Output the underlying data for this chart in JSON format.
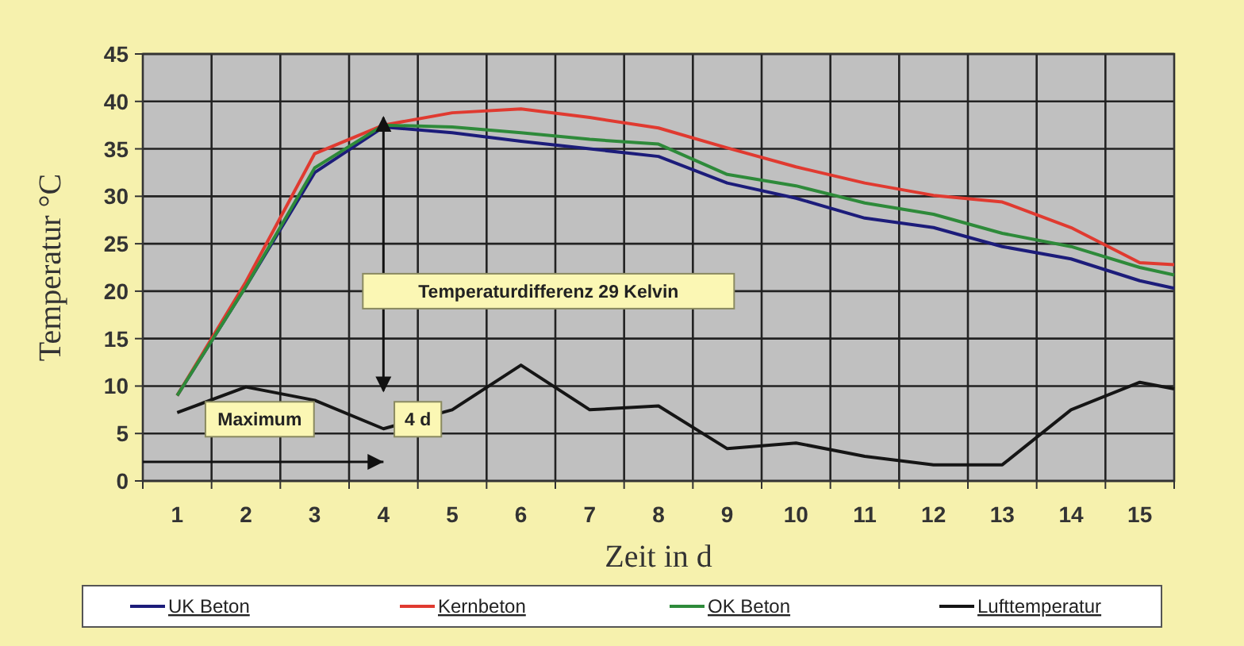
{
  "chart_data": {
    "type": "line",
    "xlabel": "Zeit in d",
    "ylabel": "Temperatur  °C",
    "xlim": [
      0.5,
      15.5
    ],
    "xticks": [
      1,
      2,
      3,
      4,
      5,
      6,
      7,
      8,
      9,
      10,
      11,
      12,
      13,
      14,
      15
    ],
    "ylim": [
      0,
      45
    ],
    "yticks": [
      0,
      5,
      10,
      15,
      20,
      25,
      30,
      35,
      40,
      45
    ],
    "grid": true,
    "legend": "bottom",
    "marker": "none",
    "line_style": "solid",
    "series": [
      {
        "name": "UK Beton",
        "color": "#1c1c7a",
        "x": [
          1,
          2,
          3,
          4,
          5,
          6,
          7,
          8,
          9,
          10,
          11,
          12,
          13,
          14,
          15,
          15.5
        ],
        "values": [
          9,
          20.5,
          32.5,
          37.3,
          36.7,
          35.8,
          35,
          34.2,
          31.4,
          29.8,
          27.7,
          26.7,
          24.7,
          23.4,
          21.1,
          20.3
        ]
      },
      {
        "name": "Kernbeton",
        "color": "#e03a30",
        "x": [
          1,
          2,
          3,
          4,
          5,
          6,
          7,
          8,
          9,
          10,
          11,
          12,
          13,
          14,
          15,
          15.5
        ],
        "values": [
          9,
          21,
          34.5,
          37.5,
          38.8,
          39.2,
          38.3,
          37.2,
          35.1,
          33.1,
          31.4,
          30.1,
          29.4,
          26.7,
          23,
          22.8
        ]
      },
      {
        "name": "OK Beton",
        "color": "#2e8a3a",
        "x": [
          1,
          2,
          3,
          4,
          5,
          6,
          7,
          8,
          9,
          10,
          11,
          12,
          13,
          14,
          15,
          15.5
        ],
        "values": [
          9,
          20.5,
          33,
          37.5,
          37.3,
          36.7,
          36,
          35.5,
          32.3,
          31.1,
          29.3,
          28.1,
          26.1,
          24.7,
          22.5,
          21.7
        ]
      },
      {
        "name": "Lufttemperatur",
        "color": "#151515",
        "x": [
          1,
          2,
          3,
          4,
          5,
          6,
          7,
          8,
          9,
          10,
          11,
          12,
          13,
          14,
          15,
          15.5
        ],
        "values": [
          7.2,
          9.9,
          8.5,
          5.5,
          7.5,
          12.2,
          7.5,
          7.9,
          3.4,
          4,
          2.6,
          1.7,
          1.7,
          7.5,
          10.4,
          9.7
        ]
      }
    ],
    "annotations": [
      "Temperaturdifferenz  29 Kelvin",
      "Maximum",
      "4 d"
    ]
  }
}
